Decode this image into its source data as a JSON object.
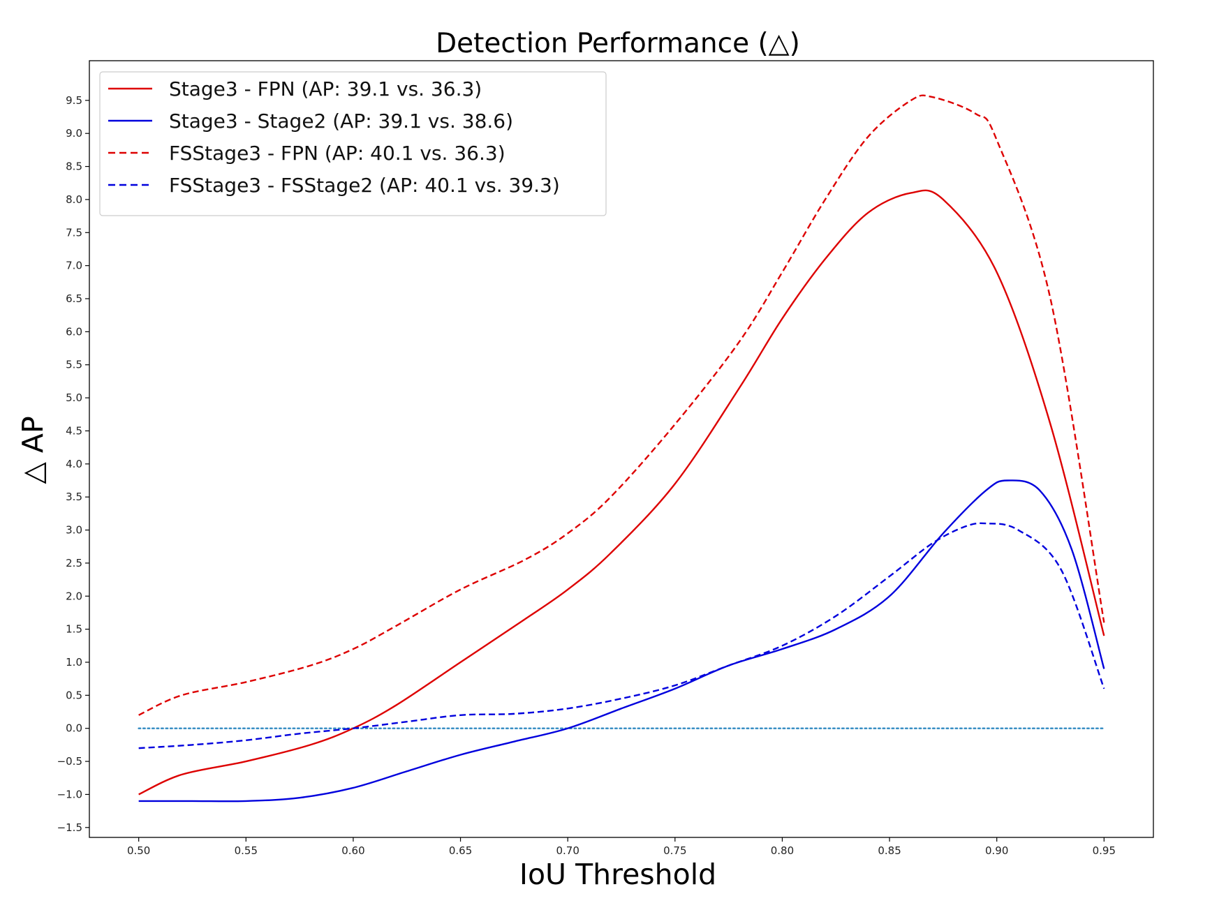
{
  "chart_data": {
    "type": "line",
    "title": "Detection Performance (△)",
    "xlabel": "IoU Threshold",
    "ylabel": "△ AP",
    "xlim": [
      0.477,
      0.973
    ],
    "ylim": [
      -1.65,
      10.1
    ],
    "xticks": [
      0.5,
      0.55,
      0.6,
      0.65,
      0.7,
      0.75,
      0.8,
      0.85,
      0.9,
      0.95
    ],
    "xtick_labels": [
      "0.50",
      "0.55",
      "0.60",
      "0.65",
      "0.70",
      "0.75",
      "0.80",
      "0.85",
      "0.90",
      "0.95"
    ],
    "yticks": [
      -1.5,
      -1.0,
      -0.5,
      0.0,
      0.5,
      1.0,
      1.5,
      2.0,
      2.5,
      3.0,
      3.5,
      4.0,
      4.5,
      5.0,
      5.5,
      6.0,
      6.5,
      7.0,
      7.5,
      8.0,
      8.5,
      9.0,
      9.5
    ],
    "ytick_labels": [
      "−1.5",
      "−1.0",
      "−0.5",
      "0.0",
      "0.5",
      "1.0",
      "1.5",
      "2.0",
      "2.5",
      "3.0",
      "3.5",
      "4.0",
      "4.5",
      "5.0",
      "5.5",
      "6.0",
      "6.5",
      "7.0",
      "7.5",
      "8.0",
      "8.5",
      "9.0",
      "9.5"
    ],
    "grid": false,
    "legend_position": "top-left",
    "baseline": {
      "y": 0.0,
      "x_range": [
        0.5,
        0.95
      ],
      "style": "dotted",
      "color": "#3a8fc4"
    },
    "series": [
      {
        "name": "Stage3 - FPN (AP: 39.1 vs. 36.3)",
        "color": "#dd0000",
        "style": "solid",
        "x": [
          0.5,
          0.52,
          0.55,
          0.58,
          0.6,
          0.62,
          0.65,
          0.68,
          0.7,
          0.72,
          0.75,
          0.78,
          0.8,
          0.82,
          0.84,
          0.86,
          0.875,
          0.9,
          0.925,
          0.95
        ],
        "y": [
          -1.0,
          -0.7,
          -0.5,
          -0.25,
          0.0,
          0.35,
          1.0,
          1.65,
          2.1,
          2.65,
          3.7,
          5.15,
          6.2,
          7.1,
          7.8,
          8.1,
          8.0,
          6.9,
          4.6,
          1.4
        ]
      },
      {
        "name": "Stage3 - Stage2 (AP: 39.1 vs. 38.6)",
        "color": "#0000dd",
        "style": "solid",
        "x": [
          0.5,
          0.525,
          0.55,
          0.575,
          0.6,
          0.625,
          0.65,
          0.675,
          0.7,
          0.725,
          0.75,
          0.775,
          0.8,
          0.825,
          0.85,
          0.875,
          0.895,
          0.905,
          0.92,
          0.935,
          0.95
        ],
        "y": [
          -1.1,
          -1.1,
          -1.1,
          -1.05,
          -0.9,
          -0.65,
          -0.4,
          -0.2,
          0.0,
          0.3,
          0.6,
          0.95,
          1.2,
          1.5,
          2.0,
          2.95,
          3.6,
          3.75,
          3.6,
          2.7,
          0.9
        ]
      },
      {
        "name": "FSStage3 - FPN (AP: 40.1 vs. 36.3)",
        "color": "#dd0000",
        "style": "dashed",
        "x": [
          0.5,
          0.52,
          0.55,
          0.58,
          0.6,
          0.62,
          0.65,
          0.68,
          0.7,
          0.72,
          0.75,
          0.78,
          0.8,
          0.82,
          0.84,
          0.86,
          0.87,
          0.89,
          0.9,
          0.925,
          0.95
        ],
        "y": [
          0.2,
          0.5,
          0.7,
          0.95,
          1.2,
          1.55,
          2.1,
          2.55,
          2.95,
          3.5,
          4.6,
          5.85,
          6.9,
          8.0,
          8.95,
          9.5,
          9.55,
          9.3,
          8.9,
          6.5,
          1.6
        ]
      },
      {
        "name": "FSStage3 - FSStage2 (AP: 40.1 vs. 39.3)",
        "color": "#0000dd",
        "style": "dashed",
        "x": [
          0.5,
          0.525,
          0.55,
          0.575,
          0.6,
          0.625,
          0.65,
          0.675,
          0.7,
          0.725,
          0.75,
          0.775,
          0.8,
          0.825,
          0.85,
          0.87,
          0.885,
          0.895,
          0.91,
          0.93,
          0.95
        ],
        "y": [
          -0.3,
          -0.25,
          -0.18,
          -0.08,
          0.0,
          0.1,
          0.2,
          0.22,
          0.3,
          0.45,
          0.65,
          0.95,
          1.25,
          1.7,
          2.3,
          2.8,
          3.05,
          3.1,
          3.0,
          2.4,
          0.6
        ]
      }
    ]
  }
}
